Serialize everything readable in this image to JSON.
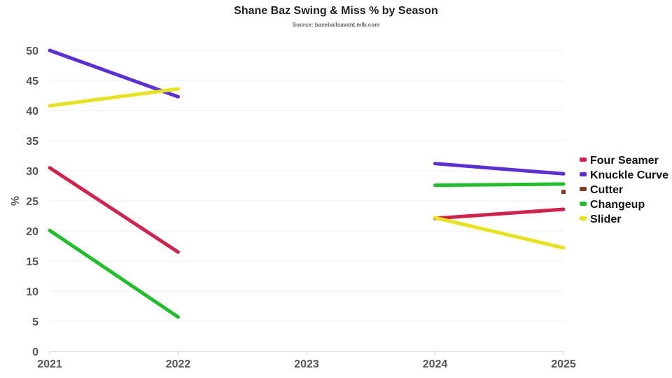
{
  "chart_data": {
    "type": "line",
    "title": "Shane Baz Swing & Miss % by Season",
    "subtitle": "Source: baseballsavant.mlb.com",
    "xlabel": "",
    "ylabel": "%",
    "categories": [
      "2021",
      "2022",
      "2023",
      "2024",
      "2025"
    ],
    "ylim": [
      0,
      50
    ],
    "yticks": [
      0,
      5,
      10,
      15,
      20,
      25,
      30,
      35,
      40,
      45,
      50
    ],
    "grid": true,
    "legend_position": "right",
    "series": [
      {
        "name": "Four Seamer",
        "color": "#d4204c",
        "values": [
          30.5,
          16.5,
          null,
          22.1,
          23.6
        ]
      },
      {
        "name": "Knuckle Curve",
        "color": "#5a2fd6",
        "values": [
          50.0,
          42.3,
          null,
          31.2,
          29.5
        ]
      },
      {
        "name": "Cutter",
        "color": "#8b3a1e",
        "values": [
          null,
          null,
          null,
          null,
          26.5
        ]
      },
      {
        "name": "Changeup",
        "color": "#1fbf2a",
        "values": [
          20.1,
          5.7,
          null,
          27.6,
          27.8
        ]
      },
      {
        "name": "Slider",
        "color": "#e8e21a",
        "values": [
          40.8,
          43.6,
          null,
          22.2,
          17.2
        ]
      }
    ]
  }
}
